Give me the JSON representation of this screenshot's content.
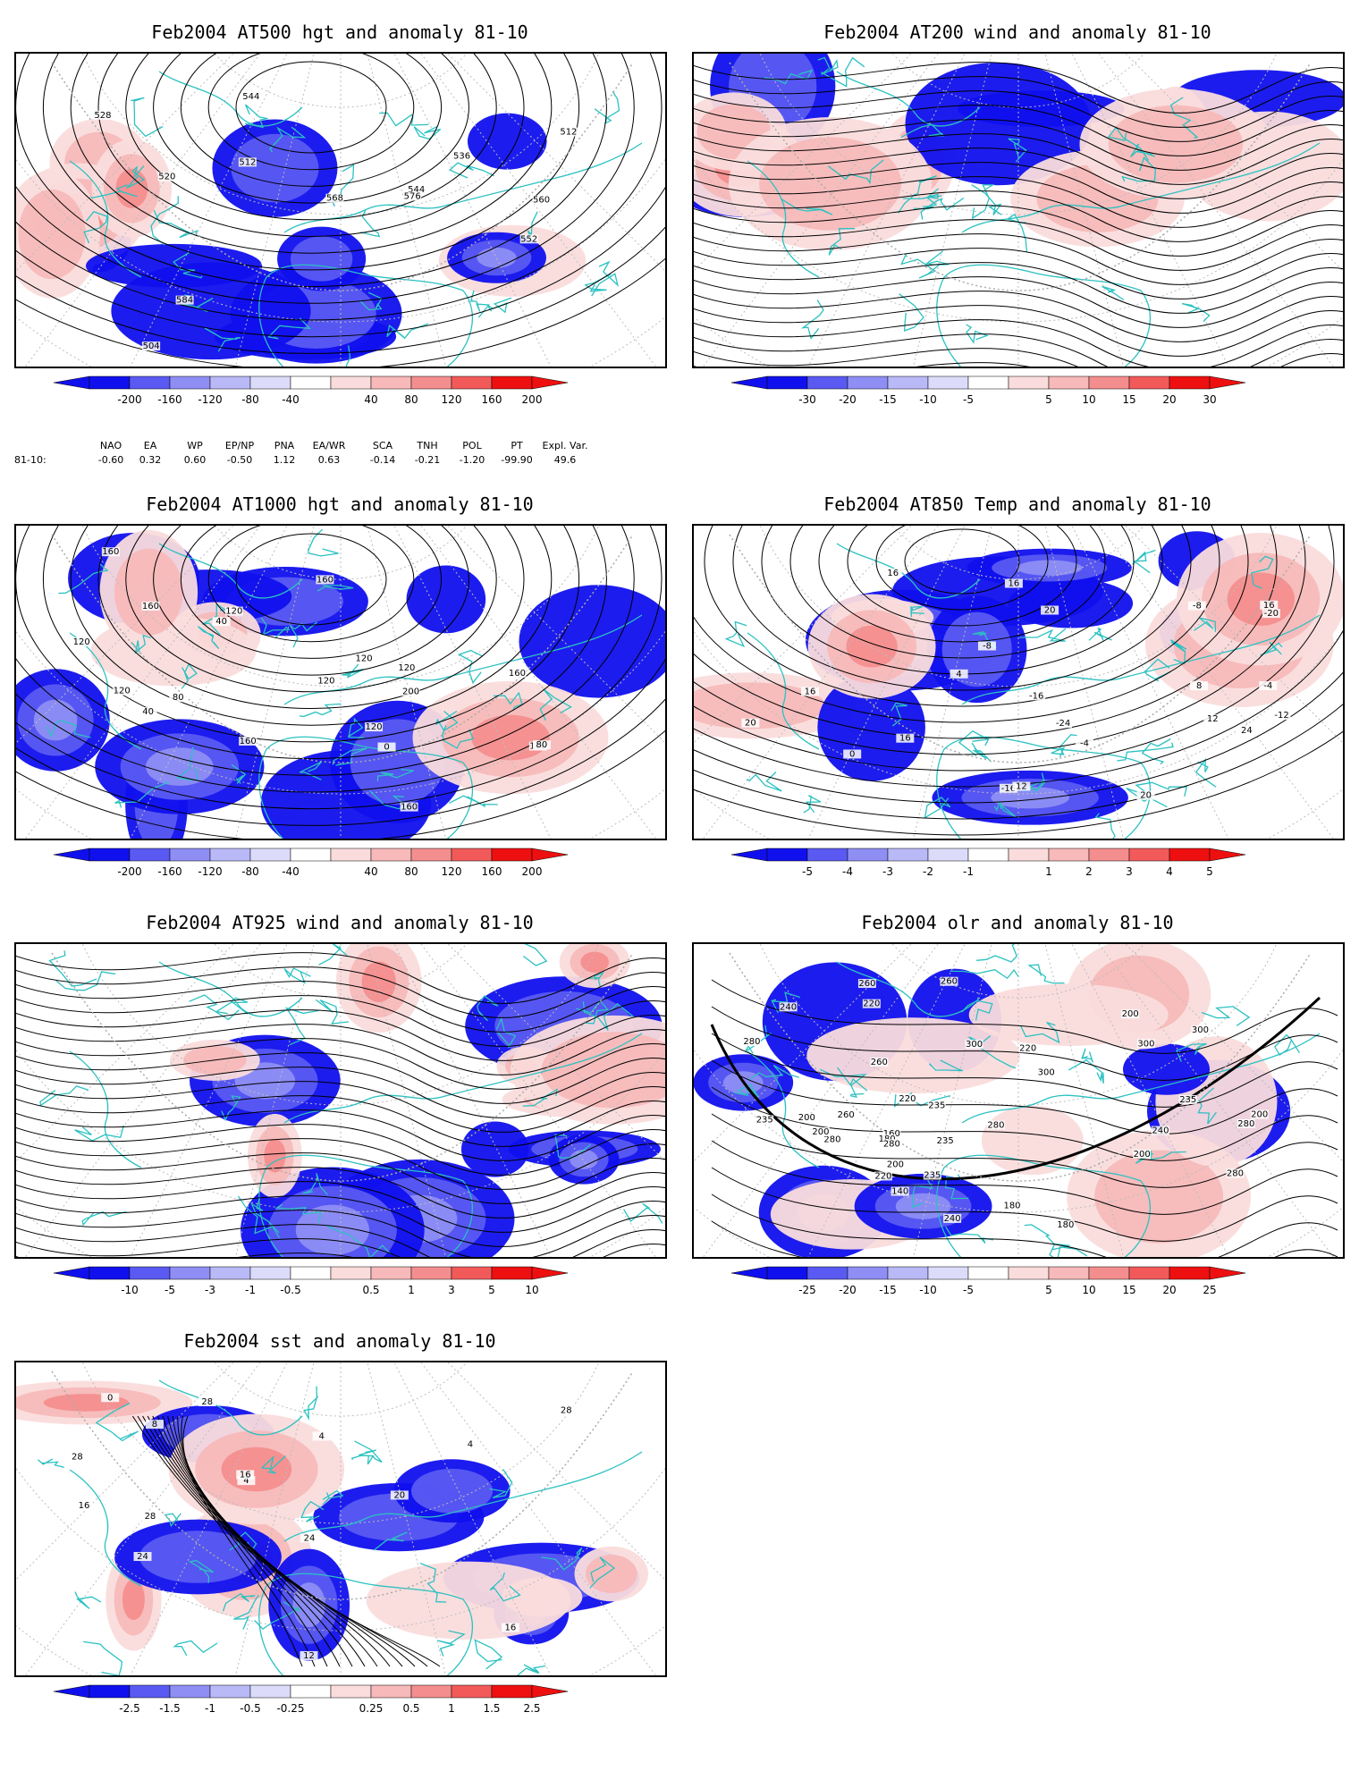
{
  "panels": [
    {
      "id": "p500",
      "title": "Feb2004 AT500 hgt and anomaly 81-10",
      "kind": "hgt",
      "contour_labels": [
        "504",
        "512",
        "512",
        "520",
        "528",
        "536",
        "544",
        "544",
        "552",
        "560",
        "568",
        "576",
        "584"
      ],
      "colorbar": [
        "-200",
        "-160",
        "-120",
        "-80",
        "-40",
        "40",
        "80",
        "120",
        "160",
        "200"
      ]
    },
    {
      "id": "p200",
      "title": "Feb2004 AT200 wind and anomaly 81-10",
      "kind": "wind",
      "contour_labels": [],
      "colorbar": [
        "-30",
        "-20",
        "-15",
        "-10",
        "-5",
        "5",
        "10",
        "15",
        "20",
        "30"
      ]
    },
    {
      "id": "p1000",
      "title": "Feb2004 AT1000 hgt and anomaly 81-10",
      "kind": "hgt",
      "contour_labels": [
        "160",
        "120",
        "80",
        "40",
        "160",
        "200",
        "160",
        "120",
        "40",
        "0",
        "120",
        "160",
        "160",
        "120",
        "120",
        "160",
        "80",
        "160",
        "120",
        "120"
      ],
      "colorbar": [
        "-200",
        "-160",
        "-120",
        "-80",
        "-40",
        "40",
        "80",
        "120",
        "160",
        "200"
      ]
    },
    {
      "id": "p850",
      "title": "Feb2004 AT850 Temp and anomaly 81-10",
      "kind": "temp",
      "contour_labels": [
        "-16",
        "16",
        "-8",
        "-4",
        "0",
        "-24",
        "-16",
        "-20",
        "-12",
        "-8",
        "-4",
        "4",
        "8",
        "12",
        "16",
        "20",
        "24",
        "16",
        "16",
        "20",
        "12",
        "16",
        "20"
      ],
      "colorbar": [
        "-5",
        "-4",
        "-3",
        "-2",
        "-1",
        "1",
        "2",
        "3",
        "4",
        "5"
      ]
    },
    {
      "id": "p925",
      "title": "Feb2004 AT925 wind and anomaly 81-10",
      "kind": "wind",
      "contour_labels": [],
      "colorbar": [
        "-10",
        "-5",
        "-3",
        "-1",
        "-0.5",
        "0.5",
        "1",
        "3",
        "5",
        "10"
      ]
    },
    {
      "id": "polr",
      "title": "Feb2004 olr and anomaly 81-10",
      "kind": "olr",
      "contour_labels": [
        "280",
        "160",
        "200",
        "180",
        "140",
        "180",
        "200",
        "200",
        "300",
        "280",
        "200",
        "220",
        "180",
        "200",
        "220",
        "235",
        "235",
        "235",
        "240",
        "300",
        "280",
        "300",
        "260",
        "280",
        "280",
        "260",
        "200",
        "220",
        "240",
        "260",
        "235",
        "280",
        "220",
        "240",
        "260",
        "235",
        "300"
      ],
      "colorbar": [
        "-25",
        "-20",
        "-15",
        "-10",
        "-5",
        "5",
        "10",
        "15",
        "20",
        "25"
      ]
    },
    {
      "id": "psst",
      "title": "Feb2004 sst and anomaly 81-10",
      "kind": "sst",
      "contour_labels": [
        "28",
        "28",
        "4",
        "0",
        "4",
        "12",
        "16",
        "20",
        "24",
        "28",
        "24",
        "28",
        "4",
        "8",
        "16",
        "16"
      ],
      "colorbar": [
        "-2.5",
        "-1.5",
        "-1",
        "-0.5",
        "-0.25",
        "0.25",
        "0.5",
        "1",
        "1.5",
        "2.5"
      ]
    }
  ],
  "teleconnections": {
    "row_label": "81-10:",
    "names": [
      "NAO",
      "EA",
      "WP",
      "EP/NP",
      "PNA",
      "EA/WR",
      "SCA",
      "TNH",
      "POL",
      "PT",
      "Expl. Var."
    ],
    "values": [
      "-0.60",
      "0.32",
      "0.60",
      "-0.50",
      "1.12",
      "0.63",
      "-0.14",
      "-0.21",
      "-1.20",
      "-99.90",
      "49.6"
    ]
  },
  "colors": {
    "negative": [
      "#1010ee",
      "#5a5af2",
      "#8e8ef4",
      "#b9b9f7",
      "#dcdcfa"
    ],
    "positive": [
      "#fadcdc",
      "#f7b9b9",
      "#f48e8e",
      "#f25a5a",
      "#ee1010"
    ],
    "coast": "#2cc1c1"
  }
}
